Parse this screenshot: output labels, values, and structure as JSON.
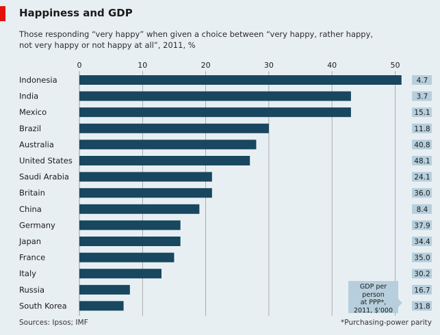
{
  "header": {
    "title": "Happiness and GDP",
    "subtitle_line1": "Those responding “very happy” when given a choice between “very happy, rather happy,",
    "subtitle_line2": "not very happy or not happy at all”, 2011, %"
  },
  "chart_data": {
    "type": "bar",
    "orientation": "horizontal",
    "title": "Happiness and GDP",
    "xlim": [
      0,
      52
    ],
    "xticks": [
      0,
      10,
      20,
      30,
      40,
      50
    ],
    "grid": true,
    "categories": [
      "Indonesia",
      "India",
      "Mexico",
      "Brazil",
      "Australia",
      "United States",
      "Saudi Arabia",
      "Britain",
      "China",
      "Germany",
      "Japan",
      "France",
      "Italy",
      "Russia",
      "South Korea"
    ],
    "values": [
      51,
      43,
      43,
      30,
      28,
      27,
      21,
      21,
      19,
      16,
      16,
      15,
      13,
      8,
      7
    ],
    "gdp_per_person": [
      "4.7",
      "3.7",
      "15.1",
      "11.8",
      "40.8",
      "48.1",
      "24.1",
      "36.0",
      "8.4",
      "37.9",
      "34.4",
      "35.0",
      "30.2",
      "16.7",
      "31.8"
    ],
    "gdp_label": [
      "GDP per person",
      "at PPP*,",
      "2011, $'000"
    ],
    "colors": {
      "bar": "#18475f",
      "gdp_box": "#b7cfdc",
      "grid": "#9a9a9a",
      "background": "#e8eff3"
    }
  },
  "footer": {
    "sources": "Sources: Ipsos; IMF",
    "footnote": "*Purchasing-power parity"
  }
}
